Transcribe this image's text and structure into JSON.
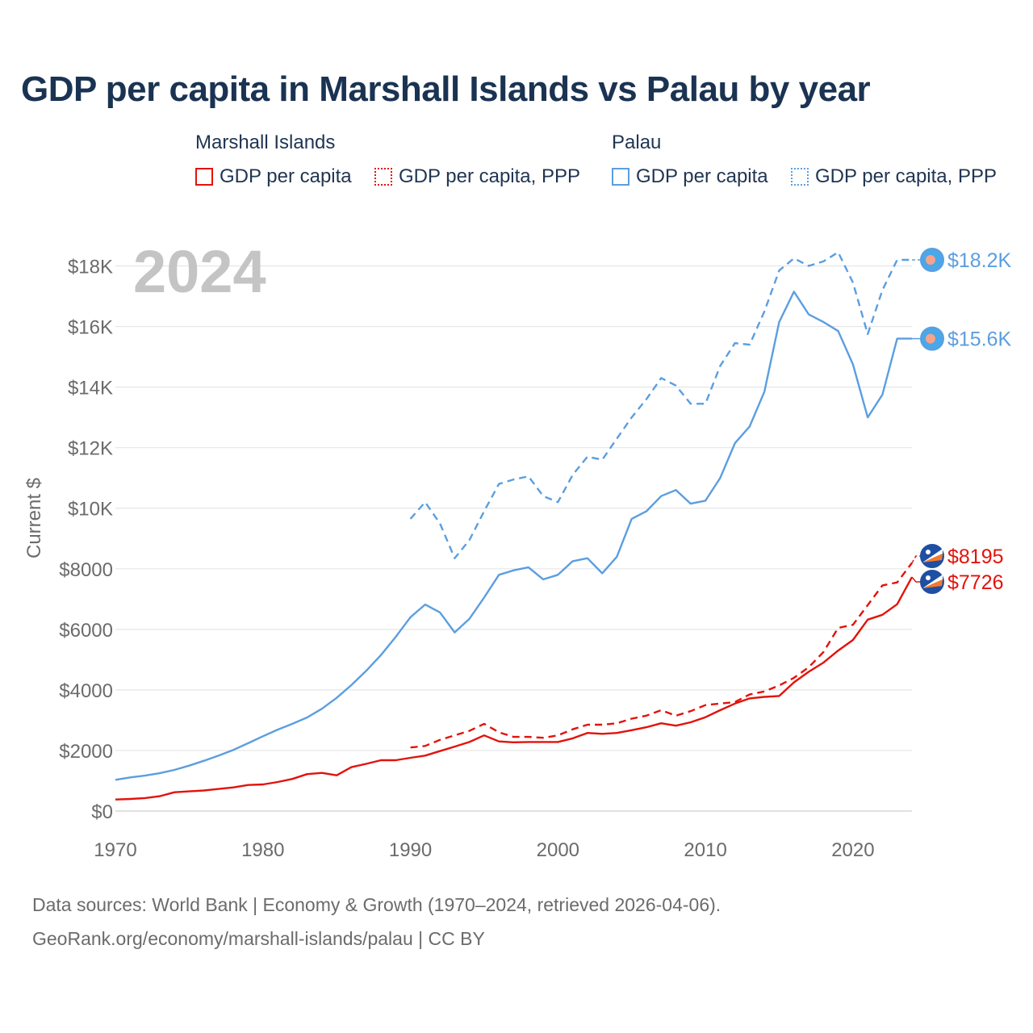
{
  "title": "GDP per capita in Marshall Islands vs Palau by year",
  "legend": {
    "groups": [
      {
        "name": "Marshall Islands",
        "items": [
          {
            "label": "GDP per capita",
            "color": "#e3120b",
            "style": "solid"
          },
          {
            "label": "GDP per capita, PPP",
            "color": "#e3120b",
            "style": "dotted"
          }
        ]
      },
      {
        "name": "Palau",
        "items": [
          {
            "label": "GDP per capita",
            "color": "#5b9ee0",
            "style": "solid"
          },
          {
            "label": "GDP per capita, PPP",
            "color": "#5b9ee0",
            "style": "dotted"
          }
        ]
      }
    ]
  },
  "chart_data": {
    "type": "line",
    "title": "GDP per capita in Marshall Islands vs Palau by year",
    "year_label": "2024",
    "xlabel": "",
    "ylabel": "Current $",
    "xlim": [
      1970,
      2024
    ],
    "ylim": [
      0,
      19000
    ],
    "x_ticks": [
      1970,
      1980,
      1990,
      2000,
      2010,
      2020
    ],
    "y_ticks": [
      {
        "value": 0,
        "label": "$0"
      },
      {
        "value": 2000,
        "label": "$2000"
      },
      {
        "value": 4000,
        "label": "$4000"
      },
      {
        "value": 6000,
        "label": "$6000"
      },
      {
        "value": 8000,
        "label": "$8000"
      },
      {
        "value": 10000,
        "label": "$10K"
      },
      {
        "value": 12000,
        "label": "$12K"
      },
      {
        "value": 14000,
        "label": "$14K"
      },
      {
        "value": 16000,
        "label": "$16K"
      },
      {
        "value": 18000,
        "label": "$18K"
      }
    ],
    "grid": true,
    "series": [
      {
        "name": "Palau GDP per capita, PPP",
        "country": "Palau",
        "color": "#5b9ee0",
        "dashed": true,
        "end_label": "$18.2K",
        "x": [
          1990,
          1991,
          1992,
          1993,
          1994,
          1995,
          1996,
          1997,
          1998,
          1999,
          2000,
          2001,
          2002,
          2003,
          2004,
          2005,
          2006,
          2007,
          2008,
          2009,
          2010,
          2011,
          2012,
          2013,
          2014,
          2015,
          2016,
          2017,
          2018,
          2019,
          2020,
          2021,
          2022,
          2023,
          2024
        ],
        "values": [
          9650,
          10200,
          9500,
          8350,
          8950,
          9900,
          10800,
          10950,
          11050,
          10400,
          10200,
          11100,
          11700,
          11600,
          12300,
          13000,
          13600,
          14300,
          14050,
          13450,
          13450,
          14700,
          15450,
          15400,
          16500,
          17850,
          18250,
          18000,
          18150,
          18450,
          17450,
          15750,
          17200,
          18200,
          18200
        ]
      },
      {
        "name": "Palau GDP per capita",
        "country": "Palau",
        "color": "#5b9ee0",
        "dashed": false,
        "end_label": "$15.6K",
        "x": [
          1970,
          1971,
          1972,
          1973,
          1974,
          1975,
          1976,
          1977,
          1978,
          1979,
          1980,
          1981,
          1982,
          1983,
          1984,
          1985,
          1986,
          1987,
          1988,
          1989,
          1990,
          1991,
          1992,
          1993,
          1994,
          1995,
          1996,
          1997,
          1998,
          1999,
          2000,
          2001,
          2002,
          2003,
          2004,
          2005,
          2006,
          2007,
          2008,
          2009,
          2010,
          2011,
          2012,
          2013,
          2014,
          2015,
          2016,
          2017,
          2018,
          2019,
          2020,
          2021,
          2022,
          2023,
          2024
        ],
        "values": [
          1030,
          1110,
          1170,
          1250,
          1360,
          1500,
          1660,
          1830,
          2020,
          2240,
          2470,
          2690,
          2880,
          3090,
          3380,
          3740,
          4160,
          4630,
          5150,
          5750,
          6400,
          6820,
          6560,
          5900,
          6350,
          7050,
          7800,
          7950,
          8050,
          7650,
          7800,
          8250,
          8350,
          7850,
          8400,
          9650,
          9900,
          10400,
          10600,
          10150,
          10250,
          11000,
          12150,
          12700,
          13850,
          16150,
          17150,
          16400,
          16150,
          15850,
          14750,
          13000,
          13750,
          15600,
          15600
        ]
      },
      {
        "name": "Marshall Islands GDP per capita, PPP",
        "country": "Marshall Islands",
        "color": "#e3120b",
        "dashed": true,
        "end_label": "$8195",
        "x": [
          1990,
          1991,
          1992,
          1993,
          1994,
          1995,
          1996,
          1997,
          1998,
          1999,
          2000,
          2001,
          2002,
          2003,
          2004,
          2005,
          2006,
          2007,
          2008,
          2009,
          2010,
          2011,
          2012,
          2013,
          2014,
          2015,
          2016,
          2017,
          2018,
          2019,
          2020,
          2021,
          2022,
          2023,
          2024
        ],
        "values": [
          2100,
          2150,
          2350,
          2500,
          2650,
          2880,
          2600,
          2450,
          2450,
          2420,
          2500,
          2700,
          2850,
          2850,
          2900,
          3050,
          3150,
          3330,
          3150,
          3300,
          3500,
          3550,
          3600,
          3850,
          3950,
          4150,
          4400,
          4750,
          5250,
          6050,
          6150,
          6800,
          7450,
          7550,
          8195
        ]
      },
      {
        "name": "Marshall Islands GDP per capita",
        "country": "Marshall Islands",
        "color": "#e3120b",
        "dashed": false,
        "end_label": "$7726",
        "x": [
          1970,
          1971,
          1972,
          1973,
          1974,
          1975,
          1976,
          1977,
          1978,
          1979,
          1980,
          1981,
          1982,
          1983,
          1984,
          1985,
          1986,
          1987,
          1988,
          1989,
          1990,
          1991,
          1992,
          1993,
          1994,
          1995,
          1996,
          1997,
          1998,
          1999,
          2000,
          2001,
          2002,
          2003,
          2004,
          2005,
          2006,
          2007,
          2008,
          2009,
          2010,
          2011,
          2012,
          2013,
          2014,
          2015,
          2016,
          2017,
          2018,
          2019,
          2020,
          2021,
          2022,
          2023,
          2024
        ],
        "values": [
          380,
          400,
          430,
          490,
          620,
          650,
          680,
          730,
          780,
          860,
          880,
          960,
          1060,
          1220,
          1260,
          1180,
          1450,
          1560,
          1680,
          1680,
          1760,
          1830,
          1980,
          2130,
          2280,
          2500,
          2300,
          2270,
          2280,
          2280,
          2280,
          2400,
          2580,
          2550,
          2580,
          2670,
          2770,
          2900,
          2820,
          2930,
          3100,
          3330,
          3550,
          3720,
          3770,
          3800,
          4250,
          4600,
          4900,
          5300,
          5650,
          6320,
          6480,
          6830,
          7726
        ]
      }
    ]
  },
  "source": {
    "line1": "Data sources: World Bank | Economy & Growth (1970–2024, retrieved 2026-04-06).",
    "line2": "GeoRank.org/economy/marshall-islands/palau | CC BY"
  }
}
